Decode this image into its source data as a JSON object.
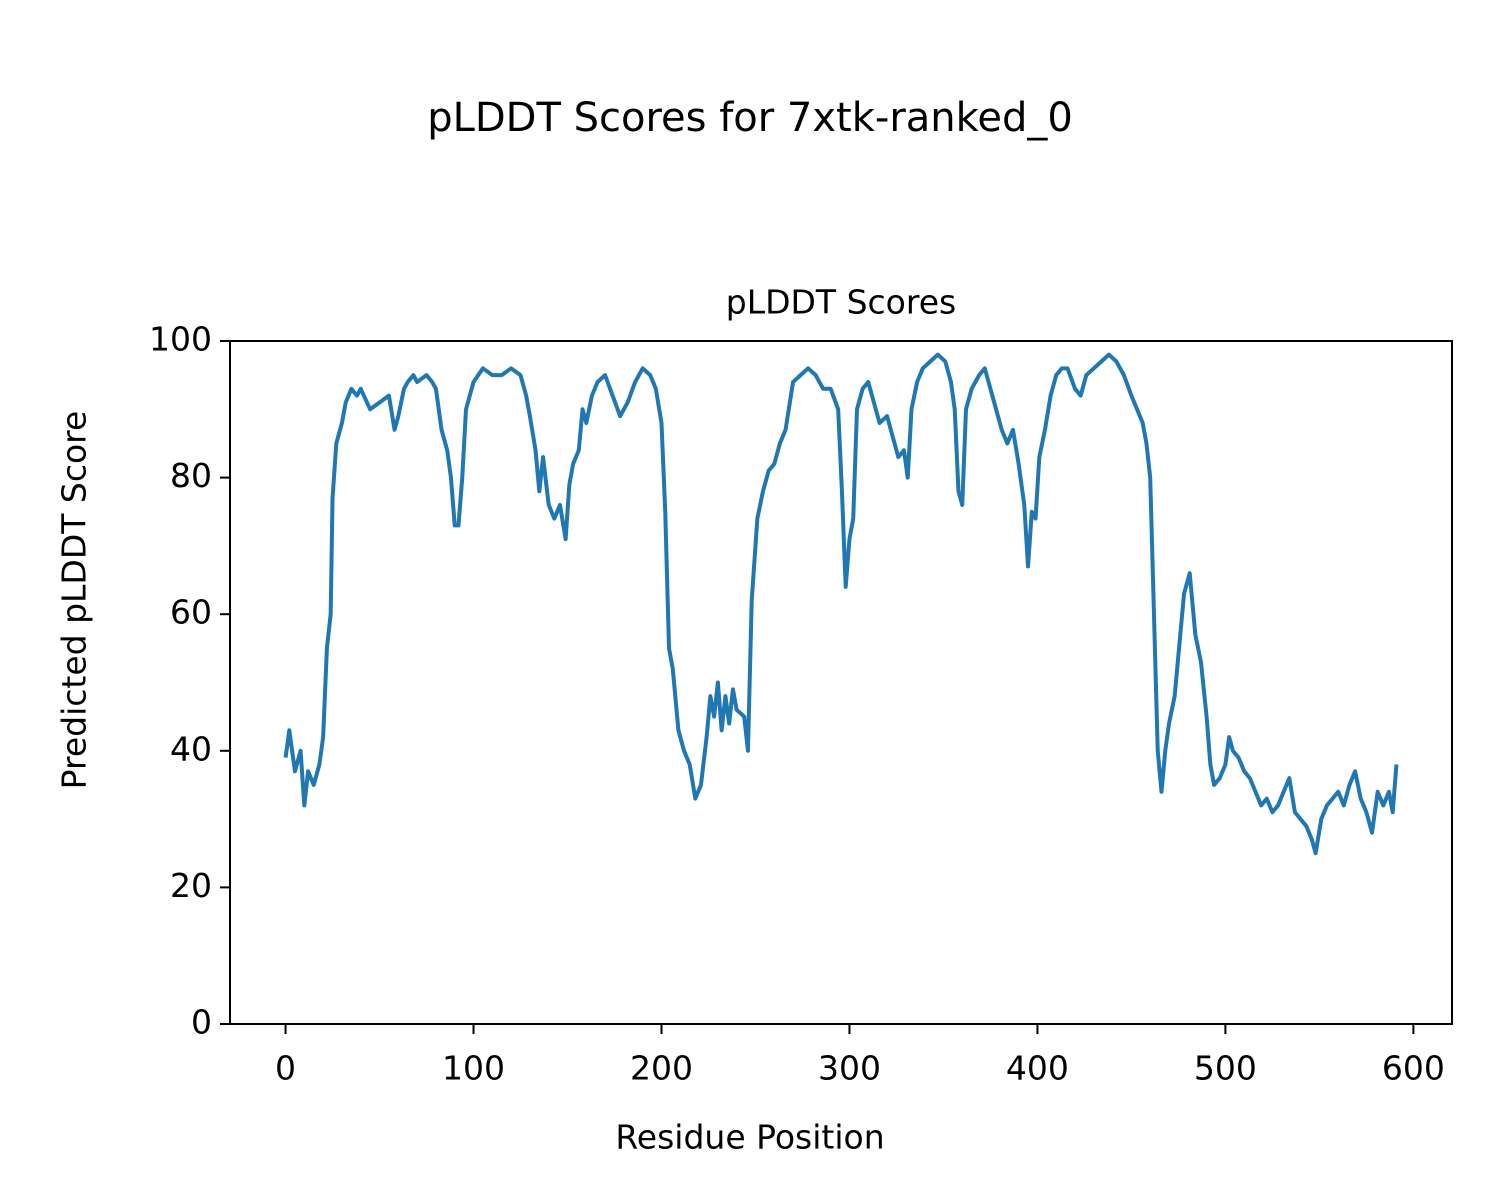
{
  "chart_data": {
    "type": "line",
    "suptitle": "pLDDT Scores for 7xtk-ranked_0",
    "title": "pLDDT Scores",
    "xlabel": "Residue Position",
    "ylabel": "Predicted pLDDT Score",
    "color": "#1f77b4",
    "x": [
      0,
      2,
      5,
      8,
      10,
      12,
      15,
      18,
      20,
      22,
      24,
      25,
      27,
      30,
      32,
      35,
      38,
      40,
      45,
      50,
      55,
      58,
      60,
      63,
      65,
      68,
      70,
      75,
      78,
      80,
      83,
      86,
      88,
      90,
      92,
      94,
      96,
      100,
      105,
      110,
      115,
      120,
      125,
      128,
      130,
      133,
      135,
      137,
      140,
      143,
      146,
      149,
      151,
      153,
      156,
      158,
      160,
      163,
      166,
      170,
      174,
      178,
      182,
      186,
      190,
      194,
      197,
      200,
      202,
      204,
      206,
      209,
      212,
      215,
      218,
      221,
      224,
      226,
      228,
      230,
      232,
      234,
      236,
      238,
      240,
      244,
      246,
      248,
      251,
      254,
      257,
      260,
      263,
      266,
      270,
      274,
      278,
      282,
      286,
      290,
      294,
      296,
      298,
      300,
      302,
      304,
      307,
      310,
      313,
      316,
      320,
      323,
      326,
      329,
      331,
      333,
      336,
      339,
      343,
      347,
      351,
      354,
      356,
      358,
      360,
      362,
      365,
      369,
      372,
      375,
      378,
      381,
      384,
      387,
      390,
      393,
      395,
      397,
      399,
      401,
      404,
      407,
      410,
      413,
      416,
      420,
      423,
      426,
      430,
      434,
      438,
      442,
      446,
      450,
      453,
      456,
      458,
      460,
      462,
      464,
      466,
      468,
      470,
      473,
      476,
      478,
      481,
      484,
      487,
      490,
      492,
      494,
      497,
      500,
      502,
      504,
      507,
      510,
      513,
      516,
      519,
      522,
      525,
      528,
      531,
      534,
      537,
      540,
      543,
      546,
      548,
      551,
      554,
      557,
      560,
      563,
      566,
      569,
      572,
      575,
      578,
      581,
      584,
      587,
      589,
      591
    ],
    "values": [
      39,
      43,
      37,
      40,
      32,
      37,
      35,
      38,
      42,
      55,
      60,
      77,
      85,
      88,
      91,
      93,
      92,
      93,
      90,
      91,
      92,
      87,
      89,
      93,
      94,
      95,
      94,
      95,
      94,
      93,
      87,
      84,
      80,
      73,
      73,
      80,
      90,
      94,
      96,
      95,
      95,
      96,
      95,
      92,
      89,
      84,
      78,
      83,
      76,
      74,
      76,
      71,
      79,
      82,
      84,
      90,
      88,
      92,
      94,
      95,
      92,
      89,
      91,
      94,
      96,
      95,
      93,
      88,
      75,
      55,
      52,
      43,
      40,
      38,
      33,
      35,
      42,
      48,
      45,
      50,
      43,
      48,
      44,
      49,
      46,
      45,
      40,
      62,
      74,
      78,
      81,
      82,
      85,
      87,
      94,
      95,
      96,
      95,
      93,
      93,
      90,
      78,
      64,
      71,
      74,
      90,
      93,
      94,
      91,
      88,
      89,
      86,
      83,
      84,
      80,
      90,
      94,
      96,
      97,
      98,
      97,
      94,
      90,
      78,
      76,
      90,
      93,
      95,
      96,
      93,
      90,
      87,
      85,
      87,
      82,
      76,
      67,
      75,
      74,
      83,
      87,
      92,
      95,
      96,
      96,
      93,
      92,
      95,
      96,
      97,
      98,
      97,
      95,
      92,
      90,
      88,
      85,
      80,
      60,
      40,
      34,
      40,
      44,
      48,
      57,
      63,
      66,
      57,
      53,
      45,
      38,
      35,
      36,
      38,
      42,
      40,
      39,
      37,
      36,
      34,
      32,
      33,
      31,
      32,
      34,
      36,
      31,
      30,
      29,
      27,
      25,
      30,
      32,
      33,
      34,
      32,
      35,
      37,
      33,
      31,
      28,
      34,
      32,
      34,
      31,
      38
    ],
    "xlim": [
      -29.55,
      620.55
    ],
    "ylim": [
      0,
      100
    ],
    "xticks": [
      0,
      100,
      200,
      300,
      400,
      500,
      600
    ],
    "yticks": [
      0,
      20,
      40,
      60,
      80,
      100
    ]
  }
}
